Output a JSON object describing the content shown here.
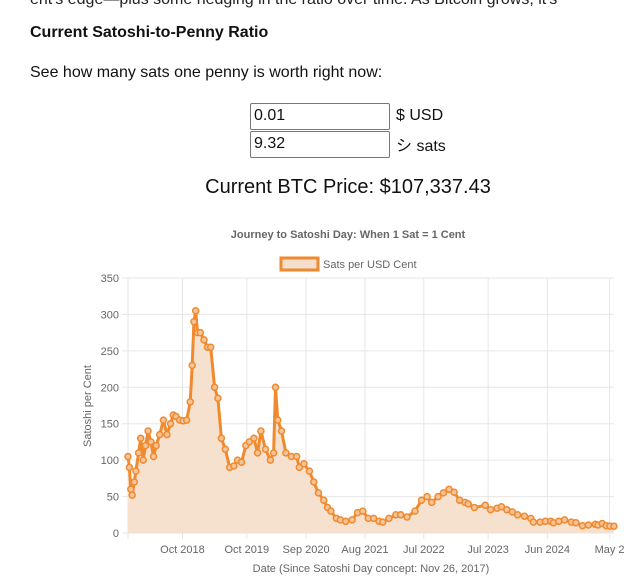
{
  "page": {
    "cut_text": "ent's edge—plus some hedging in the ratio over time. As Bitcoin grows, it's",
    "heading": "Current Satoshi-to-Penny Ratio",
    "intro": "See how many sats one penny is worth right now:",
    "usd_value": "0.01",
    "usd_unit": "$ USD",
    "sats_value": "9.32",
    "sats_unit": "シ sats",
    "price_label": "Current BTC Price: $107,337.43"
  },
  "colors": {
    "line": "#f08a2e",
    "fill": "#f5dfcc",
    "grid": "#e6e6e6",
    "text": "#666666"
  },
  "chart_data": {
    "type": "area",
    "title": "Journey to Satoshi Day: When 1 Sat = 1 Cent",
    "xlabel": "Date (Since Satoshi Day concept: Nov 26, 2017)",
    "ylabel": "Satoshi per Cent",
    "ylim": [
      0,
      350
    ],
    "yticks": [
      "0",
      "50",
      "100",
      "150",
      "200",
      "250",
      "300",
      "350"
    ],
    "xlim": [
      "2017-11-26",
      "2025-06-14"
    ],
    "xticks": [
      {
        "label": "Oct 2018",
        "date": "2018-10-01"
      },
      {
        "label": "Oct 2019",
        "date": "2019-10-01"
      },
      {
        "label": "Sep 2020",
        "date": "2020-09-01"
      },
      {
        "label": "Aug 2021",
        "date": "2021-08-01"
      },
      {
        "label": "Jul 2022",
        "date": "2022-07-01"
      },
      {
        "label": "Jul 2023",
        "date": "2023-07-01"
      },
      {
        "label": "Jun 2024",
        "date": "2024-06-01"
      },
      {
        "label": "May 2",
        "date": "2025-05-20"
      }
    ],
    "grid": true,
    "legend": "top-center",
    "series": [
      {
        "name": "Sats per USD Cent",
        "x": [
          "2017-11-26",
          "2017-12-04",
          "2017-12-12",
          "2017-12-20",
          "2018-01-01",
          "2018-01-10",
          "2018-01-25",
          "2018-02-06",
          "2018-02-20",
          "2018-03-05",
          "2018-03-20",
          "2018-04-05",
          "2018-04-20",
          "2018-05-05",
          "2018-05-25",
          "2018-06-15",
          "2018-07-05",
          "2018-07-25",
          "2018-08-10",
          "2018-08-25",
          "2018-09-15",
          "2018-10-05",
          "2018-10-25",
          "2018-11-14",
          "2018-11-25",
          "2018-12-05",
          "2018-12-15",
          "2018-12-25",
          "2019-01-10",
          "2019-01-31",
          "2019-02-20",
          "2019-03-10",
          "2019-04-01",
          "2019-04-20",
          "2019-05-10",
          "2019-06-01",
          "2019-06-26",
          "2019-07-20",
          "2019-08-10",
          "2019-09-01",
          "2019-09-25",
          "2019-10-15",
          "2019-11-10",
          "2019-12-01",
          "2019-12-20",
          "2020-01-15",
          "2020-02-12",
          "2020-03-01",
          "2020-03-12",
          "2020-03-25",
          "2020-04-15",
          "2020-05-10",
          "2020-06-10",
          "2020-07-10",
          "2020-07-25",
          "2020-08-20",
          "2020-09-20",
          "2020-10-15",
          "2020-11-10",
          "2020-12-10",
          "2021-01-01",
          "2021-01-20",
          "2021-02-20",
          "2021-03-15",
          "2021-04-14",
          "2021-05-20",
          "2021-06-20",
          "2021-07-20",
          "2021-08-20",
          "2021-09-20",
          "2021-10-20",
          "2021-11-10",
          "2021-12-15",
          "2022-01-24",
          "2022-02-20",
          "2022-03-28",
          "2022-05-12",
          "2022-06-18",
          "2022-07-20",
          "2022-08-15",
          "2022-09-20",
          "2022-10-20",
          "2022-11-21",
          "2022-12-20",
          "2023-01-20",
          "2023-02-20",
          "2023-03-10",
          "2023-04-14",
          "2023-06-15",
          "2023-07-15",
          "2023-08-20",
          "2023-09-15",
          "2023-10-15",
          "2023-11-15",
          "2023-12-15",
          "2024-01-23",
          "2024-02-28",
          "2024-03-14",
          "2024-04-20",
          "2024-05-20",
          "2024-06-20",
          "2024-07-05",
          "2024-08-05",
          "2024-09-06",
          "2024-10-15",
          "2024-11-10",
          "2024-12-17",
          "2025-01-20",
          "2025-02-28",
          "2025-03-15",
          "2025-04-08",
          "2025-05-01",
          "2025-05-22",
          "2025-06-14"
        ],
        "y": [
          105,
          90,
          60,
          52,
          70,
          85,
          110,
          130,
          100,
          120,
          140,
          125,
          105,
          120,
          135,
          155,
          135,
          150,
          162,
          160,
          155,
          154,
          155,
          180,
          230,
          290,
          305,
          275,
          275,
          265,
          255,
          255,
          200,
          185,
          130,
          115,
          90,
          92,
          100,
          97,
          120,
          125,
          130,
          110,
          140,
          115,
          100,
          110,
          200,
          155,
          140,
          110,
          105,
          105,
          90,
          95,
          85,
          70,
          55,
          45,
          35,
          30,
          20,
          18,
          16,
          18,
          28,
          30,
          20,
          20,
          16,
          15,
          20,
          25,
          25,
          22,
          30,
          45,
          50,
          42,
          50,
          55,
          60,
          56,
          45,
          42,
          40,
          35,
          38,
          32,
          34,
          36,
          32,
          29,
          25,
          23,
          20,
          15,
          15,
          16,
          16,
          14,
          16,
          18,
          15,
          14,
          10,
          11,
          12,
          11,
          13,
          10,
          9.5,
          9.3
        ]
      }
    ]
  }
}
